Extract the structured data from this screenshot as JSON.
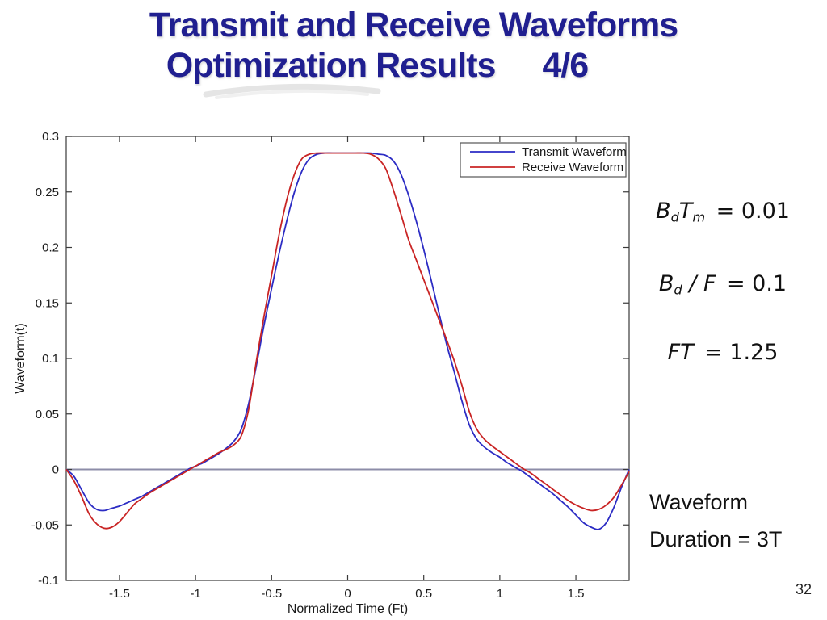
{
  "slide": {
    "title_line1": "Transmit and Receive Waveforms",
    "title_line2": "Optimization Results",
    "title_page_fraction": "4/6",
    "title_color": "#201f90",
    "page_number": "32"
  },
  "annotations": {
    "formula_bdtm": [
      [
        "B",
        "it"
      ],
      [
        "d",
        "sub"
      ],
      [
        "T",
        "it"
      ],
      [
        "m",
        "sub"
      ],
      [
        " = 0.01",
        "eq"
      ]
    ],
    "formula_bdf": [
      [
        "B",
        "it"
      ],
      [
        "d",
        "sub"
      ],
      [
        " / ",
        "it"
      ],
      [
        "F",
        "it"
      ],
      [
        " = 0.1",
        "eq"
      ]
    ],
    "formula_ft": [
      [
        "FT",
        "it"
      ],
      [
        " = 1.25",
        "eq"
      ]
    ],
    "duration_line1": [
      [
        "Waveform",
        "it"
      ]
    ],
    "duration_line2": [
      [
        "Duration",
        "it"
      ],
      [
        " = 3",
        "eq"
      ],
      [
        "T",
        "it"
      ]
    ]
  },
  "chart_data": {
    "type": "line",
    "title": "",
    "xlabel": "Normalized Time (Ft)",
    "ylabel": "Waveform(t)",
    "xlim": [
      -1.85,
      1.85
    ],
    "ylim": [
      -0.1,
      0.3
    ],
    "xticks": [
      -1.5,
      -1,
      -0.5,
      0,
      0.5,
      1,
      1.5
    ],
    "yticks": [
      -0.1,
      -0.05,
      0,
      0.05,
      0.1,
      0.15,
      0.2,
      0.25,
      0.3
    ],
    "grid": false,
    "zero_line": true,
    "zero_line_color": "#8d8da8",
    "axis_color": "#3a3a3a",
    "legend_position": "top-right",
    "x": [
      -1.85,
      -1.8,
      -1.75,
      -1.7,
      -1.65,
      -1.6,
      -1.55,
      -1.5,
      -1.45,
      -1.4,
      -1.35,
      -1.3,
      -1.25,
      -1.2,
      -1.15,
      -1.1,
      -1.05,
      -1.0,
      -0.95,
      -0.9,
      -0.85,
      -0.8,
      -0.75,
      -0.7,
      -0.65,
      -0.6,
      -0.55,
      -0.5,
      -0.45,
      -0.4,
      -0.35,
      -0.3,
      -0.25,
      -0.2,
      -0.15,
      -0.1,
      -0.05,
      0.0,
      0.05,
      0.1,
      0.15,
      0.2,
      0.25,
      0.3,
      0.35,
      0.4,
      0.45,
      0.5,
      0.55,
      0.6,
      0.65,
      0.7,
      0.75,
      0.8,
      0.85,
      0.9,
      0.95,
      1.0,
      1.05,
      1.1,
      1.15,
      1.2,
      1.25,
      1.3,
      1.35,
      1.4,
      1.45,
      1.5,
      1.55,
      1.6,
      1.65,
      1.7,
      1.75,
      1.8,
      1.85
    ],
    "series": [
      {
        "name": "Transmit Waveform",
        "color": "#2c2cc4",
        "y": [
          0,
          -0.006,
          -0.018,
          -0.03,
          -0.036,
          -0.037,
          -0.035,
          -0.033,
          -0.03,
          -0.027,
          -0.024,
          -0.02,
          -0.016,
          -0.012,
          -0.008,
          -0.004,
          0,
          0.003,
          0.006,
          0.01,
          0.014,
          0.019,
          0.025,
          0.036,
          0.06,
          0.094,
          0.13,
          0.163,
          0.195,
          0.224,
          0.25,
          0.269,
          0.28,
          0.284,
          0.285,
          0.285,
          0.285,
          0.285,
          0.285,
          0.285,
          0.285,
          0.284,
          0.283,
          0.278,
          0.266,
          0.247,
          0.224,
          0.198,
          0.17,
          0.141,
          0.113,
          0.088,
          0.062,
          0.04,
          0.027,
          0.02,
          0.015,
          0.011,
          0.006,
          0.002,
          -0.002,
          -0.007,
          -0.012,
          -0.017,
          -0.022,
          -0.028,
          -0.034,
          -0.041,
          -0.048,
          -0.052,
          -0.054,
          -0.048,
          -0.034,
          -0.016,
          0
        ]
      },
      {
        "name": "Receive Waveform",
        "color": "#c92424",
        "y": [
          0,
          -0.01,
          -0.024,
          -0.04,
          -0.049,
          -0.053,
          -0.052,
          -0.047,
          -0.039,
          -0.031,
          -0.026,
          -0.021,
          -0.017,
          -0.013,
          -0.009,
          -0.005,
          -0.001,
          0.003,
          0.007,
          0.011,
          0.015,
          0.018,
          0.022,
          0.03,
          0.055,
          0.098,
          0.138,
          0.175,
          0.212,
          0.243,
          0.266,
          0.28,
          0.284,
          0.285,
          0.285,
          0.285,
          0.285,
          0.285,
          0.285,
          0.285,
          0.284,
          0.28,
          0.271,
          0.252,
          0.23,
          0.207,
          0.189,
          0.171,
          0.153,
          0.135,
          0.117,
          0.098,
          0.076,
          0.052,
          0.036,
          0.027,
          0.021,
          0.016,
          0.011,
          0.006,
          0.001,
          -0.003,
          -0.008,
          -0.013,
          -0.018,
          -0.023,
          -0.028,
          -0.032,
          -0.035,
          -0.037,
          -0.036,
          -0.032,
          -0.025,
          -0.014,
          -0.002
        ]
      }
    ]
  }
}
